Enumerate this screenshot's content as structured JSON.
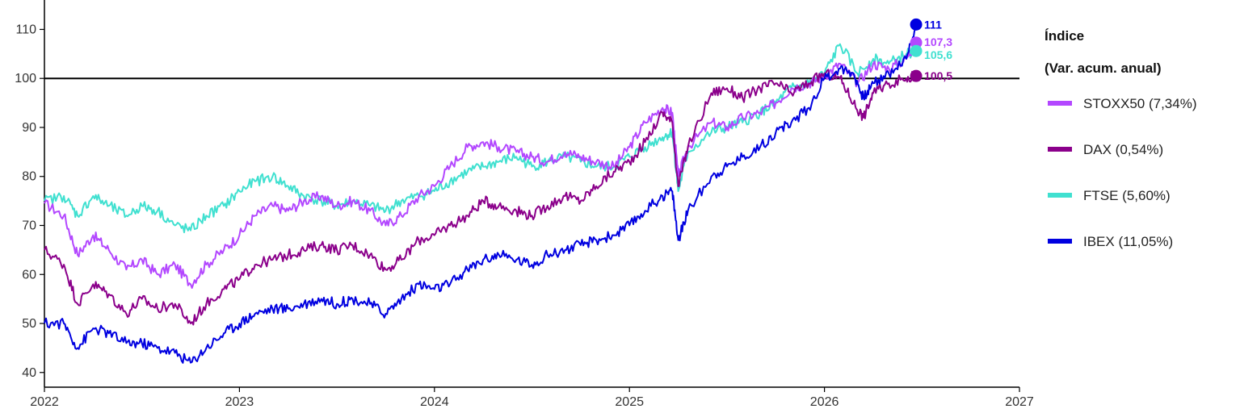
{
  "chart_data": {
    "type": "line",
    "title": "",
    "xlabel": "",
    "ylabel": "",
    "xlim": [
      2022,
      2027
    ],
    "ylim": [
      37,
      116
    ],
    "x_ticks": [
      "2022",
      "2023",
      "2024",
      "2025",
      "2026",
      "2027"
    ],
    "y_ticks": [
      40,
      50,
      60,
      70,
      80,
      90,
      100,
      110
    ],
    "reference_line": 100,
    "grid": false,
    "legend": {
      "title_line1": "Índice",
      "title_line2": "(Var. acum. anual)",
      "placement": "right"
    },
    "series": [
      {
        "name": "STOXX50 (7,34%)",
        "color": "#b347ff",
        "end_label": "107,3",
        "x": [
          2022.0,
          2022.1,
          2022.17,
          2022.25,
          2022.33,
          2022.42,
          2022.5,
          2022.58,
          2022.67,
          2022.75,
          2022.83,
          2022.92,
          2023.0,
          2023.08,
          2023.17,
          2023.25,
          2023.33,
          2023.42,
          2023.5,
          2023.58,
          2023.67,
          2023.75,
          2023.83,
          2023.92,
          2024.0,
          2024.08,
          2024.17,
          2024.25,
          2024.33,
          2024.42,
          2024.5,
          2024.58,
          2024.67,
          2024.75,
          2024.83,
          2024.92,
          2025.0,
          2025.08,
          2025.17,
          2025.22,
          2025.25,
          2025.3,
          2025.42,
          2025.5,
          2025.58,
          2025.67,
          2025.75,
          2025.83,
          2025.92,
          2026.0,
          2026.08,
          2026.17,
          2026.25,
          2026.33,
          2026.42,
          2026.47
        ],
        "y": [
          74.5,
          72,
          64,
          68,
          65,
          61,
          63,
          60,
          62,
          58,
          62,
          65,
          68,
          72,
          74,
          73,
          75,
          76,
          74,
          75,
          73,
          70,
          72,
          76,
          78,
          82,
          86,
          87,
          86,
          85,
          84,
          83,
          85,
          84,
          83,
          82,
          86,
          91,
          94,
          93,
          80,
          86,
          91,
          90,
          92,
          93,
          95,
          98,
          99,
          100.5,
          103,
          99,
          103,
          102,
          104,
          107.3
        ]
      },
      {
        "name": "DAX (0,54%)",
        "color": "#8b008b",
        "end_label": "100,5",
        "x": [
          2022.0,
          2022.1,
          2022.17,
          2022.25,
          2022.33,
          2022.42,
          2022.5,
          2022.58,
          2022.67,
          2022.75,
          2022.83,
          2022.92,
          2023.0,
          2023.08,
          2023.17,
          2023.25,
          2023.33,
          2023.42,
          2023.5,
          2023.58,
          2023.67,
          2023.75,
          2023.83,
          2023.92,
          2024.0,
          2024.08,
          2024.17,
          2024.25,
          2024.33,
          2024.42,
          2024.5,
          2024.58,
          2024.67,
          2024.75,
          2024.83,
          2024.92,
          2025.0,
          2025.08,
          2025.17,
          2025.22,
          2025.25,
          2025.3,
          2025.42,
          2025.5,
          2025.58,
          2025.67,
          2025.75,
          2025.83,
          2025.92,
          2026.0,
          2026.08,
          2026.15,
          2026.2,
          2026.25,
          2026.33,
          2026.42,
          2026.47
        ],
        "y": [
          65,
          62,
          54,
          58,
          56,
          52,
          55,
          53,
          54,
          50,
          54,
          57,
          59,
          62,
          63,
          64,
          65,
          66,
          65,
          66,
          64,
          61,
          63,
          67,
          68,
          70,
          72,
          75,
          74,
          73,
          72,
          74,
          76,
          75,
          78,
          81,
          83,
          87,
          93,
          91,
          78,
          86,
          97,
          98,
          96,
          98,
          99,
          97,
          99,
          101,
          100,
          95,
          92,
          97,
          99,
          100,
          100.5
        ]
      },
      {
        "name": "FTSE (5,60%)",
        "color": "#40e0d0",
        "end_label": "105,6",
        "x": [
          2022.0,
          2022.1,
          2022.17,
          2022.25,
          2022.33,
          2022.42,
          2022.5,
          2022.58,
          2022.67,
          2022.75,
          2022.83,
          2022.92,
          2023.0,
          2023.08,
          2023.17,
          2023.25,
          2023.33,
          2023.42,
          2023.5,
          2023.58,
          2023.67,
          2023.75,
          2023.83,
          2023.92,
          2024.0,
          2024.08,
          2024.17,
          2024.25,
          2024.33,
          2024.42,
          2024.5,
          2024.58,
          2024.67,
          2024.75,
          2024.83,
          2024.92,
          2025.0,
          2025.08,
          2025.17,
          2025.22,
          2025.25,
          2025.3,
          2025.42,
          2025.5,
          2025.58,
          2025.67,
          2025.75,
          2025.83,
          2025.92,
          2026.0,
          2026.08,
          2026.17,
          2026.25,
          2026.33,
          2026.42,
          2026.47
        ],
        "y": [
          75,
          76,
          72,
          76,
          74,
          72,
          74,
          73,
          70,
          69,
          72,
          74,
          77,
          79,
          80,
          78,
          76,
          75,
          74,
          75,
          74,
          73,
          75,
          76,
          77,
          79,
          81,
          82,
          83,
          84,
          82,
          83,
          84,
          83,
          82,
          82,
          84,
          86,
          88,
          89,
          77,
          85,
          89,
          90,
          91,
          93,
          95,
          98,
          99,
          101,
          107,
          101,
          104,
          103,
          105,
          105.6
        ]
      },
      {
        "name": "IBEX (11,05%)",
        "color": "#0000e0",
        "end_label": "111",
        "x": [
          2022.0,
          2022.1,
          2022.17,
          2022.25,
          2022.33,
          2022.42,
          2022.5,
          2022.58,
          2022.67,
          2022.75,
          2022.83,
          2022.92,
          2023.0,
          2023.08,
          2023.17,
          2023.25,
          2023.33,
          2023.42,
          2023.5,
          2023.58,
          2023.67,
          2023.75,
          2023.83,
          2023.92,
          2024.0,
          2024.08,
          2024.17,
          2024.25,
          2024.33,
          2024.42,
          2024.5,
          2024.58,
          2024.67,
          2024.75,
          2024.83,
          2024.92,
          2025.0,
          2025.08,
          2025.17,
          2025.22,
          2025.25,
          2025.3,
          2025.42,
          2025.5,
          2025.58,
          2025.67,
          2025.75,
          2025.83,
          2025.92,
          2026.0,
          2026.08,
          2026.15,
          2026.2,
          2026.25,
          2026.33,
          2026.42,
          2026.47
        ],
        "y": [
          50,
          50,
          45,
          49,
          48,
          46,
          46,
          45,
          44,
          42,
          45,
          48,
          50,
          52,
          53,
          53,
          54,
          55,
          54,
          55,
          54,
          52,
          55,
          58,
          57,
          58,
          61,
          63,
          64,
          63,
          62,
          64,
          65,
          66,
          67,
          68,
          70,
          73,
          76,
          77,
          67,
          73,
          80,
          82,
          84,
          86,
          89,
          91,
          94,
          100,
          102,
          101,
          96,
          99,
          101,
          104,
          111
        ]
      }
    ]
  }
}
